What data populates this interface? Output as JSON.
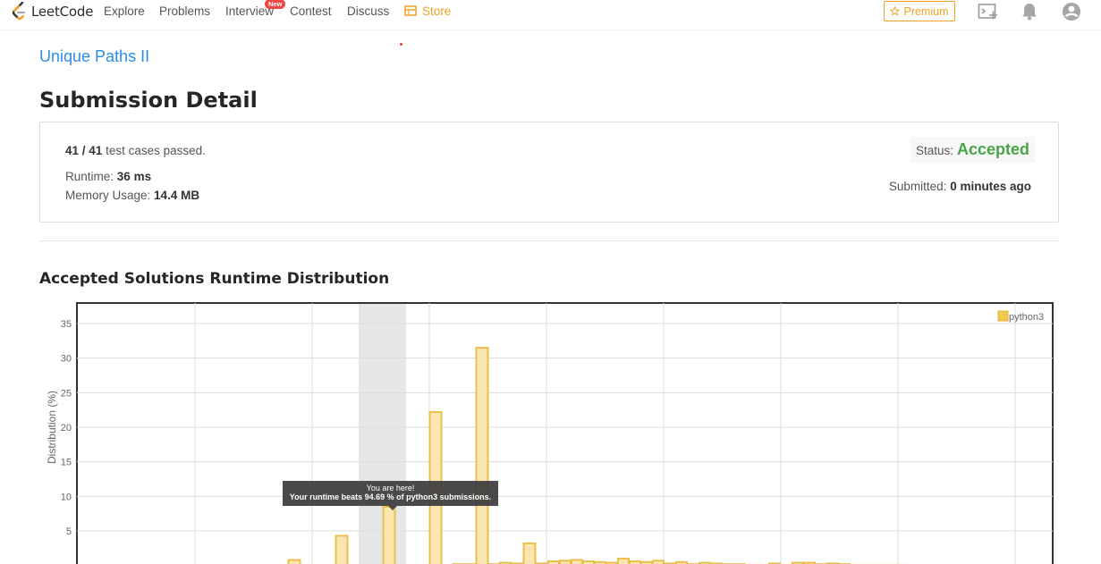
{
  "nav": {
    "logo_text": "LeetCode",
    "links": [
      "Explore",
      "Problems",
      "Interview",
      "Contest",
      "Discuss"
    ],
    "store_label": "Store",
    "new_badge": "New",
    "premium_label": "Premium"
  },
  "problem_link": "Unique Paths II",
  "page_title": "Submission Detail",
  "summary": {
    "passed": "41 / 41",
    "passed_suffix": "test cases passed.",
    "runtime_label": "Runtime:",
    "runtime_value": "36 ms",
    "memory_label": "Memory Usage:",
    "memory_value": "14.4 MB",
    "status_label": "Status:",
    "status_value": "Accepted",
    "submitted_label": "Submitted:",
    "submitted_value": "0 minutes ago"
  },
  "distribution_title": "Accepted Solutions Runtime Distribution",
  "tooltip": {
    "line1": "You are here!",
    "line2": "Your runtime beats 94.69 % of python3 submissions."
  },
  "colors": {
    "accent": "#2c8de6",
    "accepted": "#4aa447",
    "store": "#f0a027",
    "bar_fill": "#fbe6b0",
    "bar_stroke": "#e9c04a"
  },
  "chart_data": {
    "type": "bar",
    "ylabel": "Distribution (%)",
    "ylim": [
      0,
      37
    ],
    "yticks": [
      5,
      10,
      15,
      20,
      25,
      30,
      35
    ],
    "grid": true,
    "legend": "top-right",
    "series": [
      {
        "name": "python3",
        "values": [
          0.8,
          4.3,
          8.5,
          22.2,
          0.2,
          0.2,
          31.5,
          0.2,
          0.4,
          0.3,
          3.2,
          0.3,
          0.6,
          0.7,
          0.8,
          0.6,
          0.5,
          0.4,
          1.0,
          0.6,
          0.5,
          0.7,
          0.3,
          0.5,
          0.2,
          0.4,
          0.3,
          0.2,
          0.2,
          0.1,
          0.1,
          0.3,
          0.1,
          0.4,
          0.4,
          0.2,
          0.3,
          0.2,
          0.1,
          0.1,
          0.1,
          0.1,
          0.1
        ]
      }
    ],
    "highlighted_bar_index": 2
  }
}
